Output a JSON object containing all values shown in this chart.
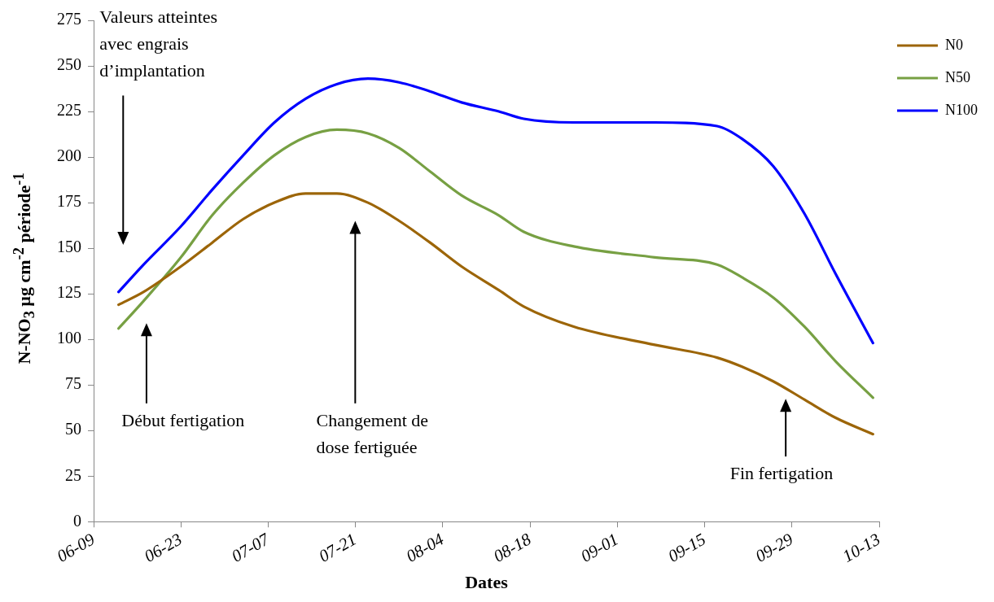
{
  "chart_data": {
    "type": "line",
    "xlabel": "Dates",
    "ylabel": "N-NO$_{3}$ µg cm$^{-2}$ période$^{-1}$",
    "x": [
      "--06-13",
      "--06-17",
      "--06-23",
      "--06-28",
      "--07-03",
      "--07-08",
      "--07-13",
      "--07-18",
      "--07-23",
      "--07-28",
      "--08-02",
      "--08-07",
      "--08-13",
      "--08-17",
      "--08-25",
      "--09-07",
      "--09-17",
      "--09-21",
      "--09-26",
      "--10-01",
      "--10-06",
      "--10-12"
    ],
    "series": [
      {
        "name": "N0",
        "color": "#9c6508",
        "values": [
          119,
          126,
          140,
          153,
          166,
          175,
          180,
          180,
          175,
          165,
          153,
          140,
          127,
          118,
          107,
          97,
          90,
          85,
          77,
          67,
          57,
          48
        ]
      },
      {
        "name": "N50",
        "color": "#77a043",
        "values": [
          106,
          121,
          145,
          168,
          186,
          201,
          211,
          215,
          213,
          205,
          192,
          179,
          168,
          159,
          151,
          145,
          141,
          134,
          123,
          107,
          88,
          68
        ]
      },
      {
        "name": "N100",
        "color": "#0000ff",
        "values": [
          126,
          141,
          162,
          182,
          201,
          219,
          232,
          240,
          243,
          241,
          236,
          230,
          225,
          221,
          219,
          219,
          217,
          210,
          195,
          169,
          136,
          98
        ]
      }
    ],
    "xlim": [
      "--06-09",
      "--10-13"
    ],
    "xticks": [
      {
        "value": "--06-09",
        "label": "06-09"
      },
      {
        "value": "--06-23",
        "label": "06-23"
      },
      {
        "value": "--07-07",
        "label": "07-07"
      },
      {
        "value": "--07-21",
        "label": "07-21"
      },
      {
        "value": "--08-04",
        "label": "08-04"
      },
      {
        "value": "--08-18",
        "label": "08-18"
      },
      {
        "value": "--09-01",
        "label": "09-01"
      },
      {
        "value": "--09-15",
        "label": "09-15"
      },
      {
        "value": "--09-29",
        "label": "09-29"
      },
      {
        "value": "--10-13",
        "label": "10-13"
      }
    ],
    "ylim": [
      0,
      275
    ],
    "yticks": [
      0,
      25,
      50,
      75,
      100,
      125,
      150,
      175,
      200,
      225,
      250,
      275
    ],
    "grid": false,
    "legend": "top right",
    "marker": "none",
    "line_style": "solid",
    "annotations": [
      "Valeurs atteintes avec engrais d’implantation",
      "Début fertigation",
      "Changement de dose fertiguée",
      "Fin fertigation"
    ]
  }
}
